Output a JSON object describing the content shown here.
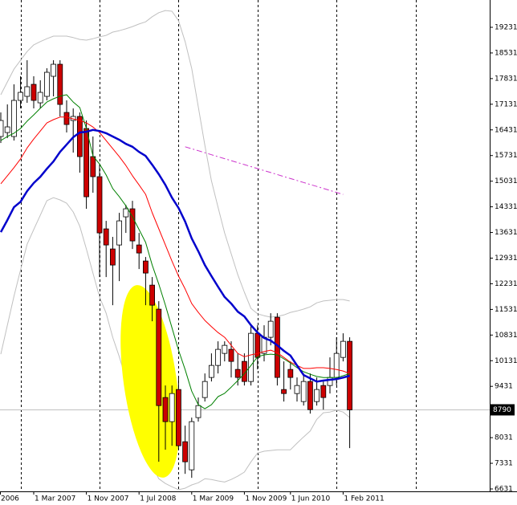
{
  "chart_data": {
    "type": "candlestick",
    "categories": [
      "2006",
      null,
      null,
      null,
      null,
      null,
      null,
      null,
      "1 Mar 2007",
      null,
      null,
      null,
      null,
      null,
      null,
      null,
      "1 Nov 2007",
      null,
      null,
      null,
      null,
      null,
      null,
      null,
      "1 Jul 2008",
      null,
      null,
      null,
      null,
      null,
      null,
      null,
      "1 Mar 2009",
      null,
      null,
      null,
      null,
      null,
      null,
      null,
      "1 Nov 2009",
      null,
      null,
      null,
      null,
      null,
      null,
      "1 Jun 2010",
      null,
      null,
      null,
      null,
      null,
      null,
      null,
      "1 Feb 2011",
      null
    ],
    "open": [
      null,
      null,
      null,
      16250,
      16359,
      16250,
      17236,
      17346,
      17674,
      17170,
      17346,
      17894,
      18222,
      16907,
      16688,
      16798,
      16469,
      15702,
      15154,
      13729,
      13181,
      13290,
      14058,
      14277,
      13290,
      12852,
      12194,
      11537,
      9126,
      8468,
      9345,
      7920,
      7153,
      8578,
      9126,
      9674,
      10002,
      10331,
      10441,
      9893,
      10112,
      9564,
      10879,
      10331,
      10770,
      11318,
      9345,
      9893,
      9235,
      9016,
      9564,
      9016,
      9454,
      9454,
      9674,
      10221,
      10660
    ],
    "high": [
      null,
      null,
      null,
      16907,
      17126,
      17674,
      17894,
      18332,
      17894,
      17784,
      18113,
      18332,
      18332,
      17236,
      17017,
      16907,
      16688,
      16250,
      15482,
      13948,
      13510,
      14167,
      14386,
      14496,
      13619,
      12962,
      12414,
      11756,
      9454,
      9454,
      9674,
      8358,
      8578,
      9126,
      9783,
      10331,
      10660,
      10660,
      10660,
      10331,
      10331,
      11098,
      11098,
      11098,
      11427,
      11427,
      10112,
      10112,
      9674,
      9783,
      9783,
      9674,
      9564,
      10221,
      10770,
      10879,
      10770
    ],
    "low": [
      null,
      null,
      null,
      16074,
      16206,
      16140,
      17017,
      17170,
      17017,
      17017,
      17236,
      17346,
      16798,
      16359,
      15811,
      15263,
      14277,
      14715,
      12414,
      12414,
      11646,
      12304,
      13619,
      13181,
      12633,
      11646,
      11208,
      7372,
      7701,
      7810,
      7701,
      7043,
      6934,
      8468,
      9016,
      9564,
      9783,
      10112,
      9674,
      9454,
      9454,
      9454,
      9893,
      10112,
      10550,
      9454,
      9016,
      9345,
      9016,
      8906,
      8687,
      8906,
      8797,
      9235,
      9454,
      10112,
      7745
    ],
    "close": [
      null,
      null,
      null,
      16688,
      16513,
      17236,
      17455,
      17609,
      17236,
      17455,
      18003,
      18222,
      17126,
      16578,
      16798,
      15702,
      14606,
      15154,
      13619,
      13290,
      12742,
      13948,
      14277,
      13400,
      13071,
      12523,
      11646,
      8906,
      8468,
      9235,
      7810,
      7372,
      8468,
      8906,
      9564,
      10002,
      10441,
      10550,
      10112,
      9674,
      9564,
      10879,
      10221,
      10770,
      11208,
      9674,
      9235,
      9674,
      9454,
      9564,
      8797,
      9345,
      9126,
      9674,
      10331,
      10660,
      8790
    ],
    "up_color": "#ffffff",
    "down_color": "#cc0000",
    "overlays": [
      {
        "color": "#c0c0c0",
        "line_width": 1,
        "values": [
          null,
          null,
          null,
          17390,
          17740,
          18090,
          18330,
          18570,
          18750,
          18840,
          18920,
          18990,
          18990,
          18990,
          18950,
          18900,
          18880,
          18920,
          18970,
          19010,
          19100,
          19140,
          19190,
          19250,
          19320,
          19380,
          19520,
          19630,
          19690,
          19670,
          19410,
          18840,
          18110,
          17060,
          16010,
          15040,
          14320,
          13620,
          13050,
          12480,
          12000,
          11560,
          11410,
          11360,
          11320,
          11340,
          11380,
          11450,
          11490,
          11540,
          11600,
          11710,
          11760,
          11780,
          11800,
          11800,
          11760
        ]
      },
      {
        "color": "#c0c0c0",
        "line_width": 1,
        "values": [
          null,
          null,
          null,
          10310,
          11100,
          11890,
          12610,
          13310,
          13710,
          14100,
          14500,
          14580,
          14520,
          14430,
          14190,
          13800,
          13180,
          12520,
          11870,
          11430,
          10770,
          10240,
          9650,
          9190,
          8490,
          7610,
          7260,
          6910,
          6780,
          6690,
          6610,
          6650,
          6740,
          6800,
          6910,
          6890,
          6850,
          6820,
          6890,
          6980,
          7090,
          7370,
          7610,
          7660,
          7680,
          7700,
          7700,
          7700,
          7880,
          8050,
          8210,
          8530,
          8710,
          8730,
          8780,
          8730,
          8580
        ]
      },
      {
        "color": "#ff0000",
        "line_width": 1,
        "values": [
          null,
          null,
          null,
          14960,
          15180,
          15400,
          15640,
          15940,
          16180,
          16400,
          16620,
          16710,
          16780,
          16780,
          16730,
          16690,
          16620,
          16510,
          16360,
          16140,
          15920,
          15700,
          15460,
          15180,
          14930,
          14670,
          14170,
          13730,
          13290,
          12850,
          12440,
          12090,
          11690,
          11450,
          11230,
          11060,
          10900,
          10770,
          10550,
          10330,
          10240,
          10290,
          10330,
          10380,
          10420,
          10350,
          10220,
          10090,
          10000,
          9920,
          9920,
          9940,
          9940,
          9920,
          9890,
          9850,
          9780
        ]
      },
      {
        "color": "#008000",
        "line_width": 1,
        "values": [
          null,
          null,
          null,
          16140,
          16250,
          16340,
          16470,
          16670,
          16840,
          17020,
          17190,
          17280,
          17350,
          17390,
          17190,
          17040,
          16470,
          15720,
          15500,
          15200,
          14830,
          14610,
          14360,
          14060,
          13710,
          13360,
          12740,
          12220,
          11650,
          11030,
          10420,
          9890,
          9300,
          8930,
          8820,
          8930,
          9150,
          9240,
          9410,
          9590,
          9780,
          10000,
          10240,
          10290,
          10310,
          10290,
          10180,
          10070,
          9940,
          9830,
          9760,
          9700,
          9670,
          9670,
          9670,
          9720,
          9780
        ]
      },
      {
        "color": "#0000cc",
        "line_width": 2.5,
        "values": [
          null,
          null,
          null,
          13640,
          13970,
          14320,
          14470,
          14760,
          14980,
          15150,
          15370,
          15570,
          15830,
          16030,
          16230,
          16360,
          16380,
          16430,
          16400,
          16340,
          16250,
          16160,
          16050,
          15970,
          15830,
          15720,
          15480,
          15220,
          14930,
          14580,
          14300,
          13930,
          13470,
          13120,
          12740,
          12440,
          12150,
          11870,
          11690,
          11470,
          11340,
          11100,
          10900,
          10750,
          10680,
          10550,
          10400,
          10270,
          10000,
          9740,
          9650,
          9560,
          9590,
          9610,
          9630,
          9670,
          9720
        ]
      },
      {
        "color": "#cc33cc",
        "line_width": 1,
        "dashed": true,
        "values": [
          null,
          null,
          null,
          null,
          null,
          null,
          null,
          null,
          null,
          null,
          null,
          null,
          null,
          null,
          null,
          null,
          null,
          null,
          null,
          null,
          null,
          null,
          null,
          null,
          null,
          null,
          null,
          null,
          null,
          null,
          null,
          15970,
          15916,
          15862,
          15808,
          15753,
          15699,
          15645,
          15591,
          15537,
          15483,
          15428,
          15374,
          15320,
          15266,
          15212,
          15158,
          15103,
          15049,
          14995,
          14941,
          14887,
          14833,
          14778,
          14724,
          14670,
          null
        ]
      }
    ],
    "ylim": [
      6565,
      19976
    ],
    "yticks": [
      19231,
      18531,
      17831,
      17131,
      16431,
      15731,
      15031,
      14331,
      13631,
      12931,
      12231,
      11531,
      10831,
      10131,
      9431,
      8031,
      7331,
      6631
    ],
    "bid_line": true
  }
}
